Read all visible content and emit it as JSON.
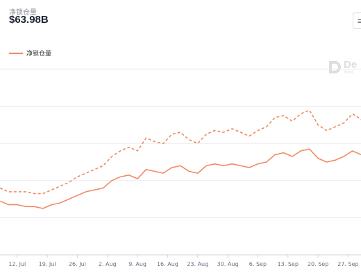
{
  "header": {
    "label": "净锁仓量",
    "value": "$63.98B"
  },
  "corner_button": {
    "label": "≡"
  },
  "watermark": {
    "title": "De",
    "subtitle": "Your"
  },
  "colors": {
    "series": "#f08a63",
    "grid": "#e9ecef",
    "axis_text": "#6b7280"
  },
  "chart_data": {
    "type": "line",
    "title": "",
    "xlabel": "",
    "ylabel": "",
    "grid": true,
    "legend": {
      "position": "top-left",
      "entries": [
        "净锁仓量"
      ]
    },
    "x_ticks": [
      "12. Jul",
      "19. Jul",
      "26. Jul",
      "2. Aug",
      "9. Aug",
      "16. Aug",
      "23. Aug",
      "30. Aug",
      "6. Sep",
      "13. Sep",
      "20. Sep",
      "27. Sep"
    ],
    "x_range": [
      0,
      84
    ],
    "y_range": [
      0,
      100
    ],
    "series": [
      {
        "name": "净锁仓量",
        "style": "solid",
        "x": [
          0,
          2,
          4,
          6,
          8,
          10,
          12,
          14,
          16,
          18,
          20,
          22,
          24,
          26,
          28,
          30,
          32,
          34,
          36,
          38,
          40,
          42,
          44,
          46,
          48,
          50,
          52,
          54,
          56,
          58,
          60,
          62,
          64,
          66,
          68,
          70,
          72,
          74,
          76,
          78,
          80,
          82,
          84
        ],
        "y": [
          29,
          27,
          27,
          26,
          26,
          25,
          27,
          28,
          30,
          32,
          34,
          35,
          36,
          40,
          42,
          43,
          41,
          46,
          45,
          44,
          47,
          48,
          45,
          44,
          48,
          49,
          48,
          49,
          48,
          47,
          49,
          50,
          54,
          55,
          53,
          56,
          57,
          52,
          50,
          51,
          53,
          56,
          54
        ]
      },
      {
        "name": "",
        "style": "dashed",
        "x": [
          0,
          2,
          4,
          6,
          8,
          10,
          12,
          14,
          16,
          18,
          20,
          22,
          24,
          26,
          28,
          30,
          32,
          34,
          36,
          38,
          40,
          42,
          44,
          46,
          48,
          50,
          52,
          54,
          56,
          58,
          60,
          62,
          64,
          66,
          68,
          70,
          72,
          74,
          76,
          78,
          80,
          82,
          84
        ],
        "y": [
          36,
          34,
          34,
          34,
          33,
          33,
          35,
          37,
          39,
          42,
          44,
          46,
          48,
          53,
          56,
          58,
          56,
          63,
          61,
          60,
          65,
          66,
          62,
          60,
          65,
          67,
          66,
          68,
          66,
          64,
          67,
          69,
          74,
          75,
          72,
          76,
          78,
          70,
          67,
          69,
          71,
          76,
          73
        ]
      }
    ]
  }
}
